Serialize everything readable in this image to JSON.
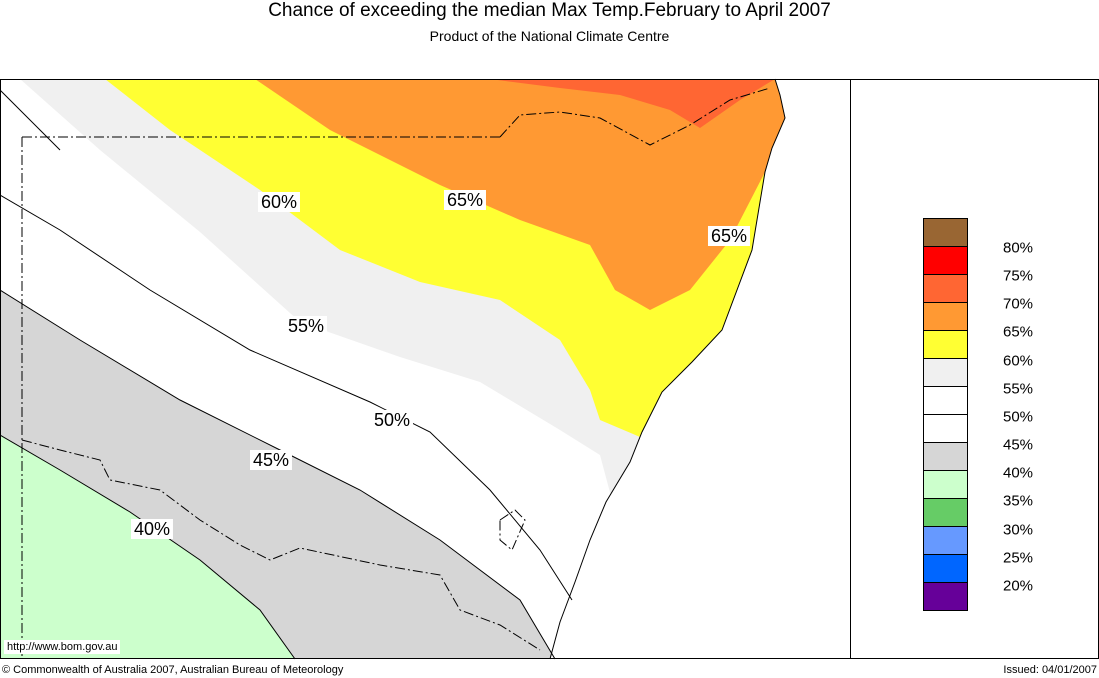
{
  "title": "Chance of exceeding the median Max Temp.February to April 2007",
  "subtitle": "Product of the National Climate Centre",
  "contour_labels": [
    "60%",
    "65%",
    "65%",
    "55%",
    "50%",
    "45%",
    "40%"
  ],
  "url": "http://www.bom.gov.au",
  "copyright": "© Commonwealth of Australia 2007, Australian Bureau of Meteorology",
  "issued": "Issued: 04/01/2007",
  "legend": {
    "colors": [
      "#996633",
      "#ff0000",
      "#ff6633",
      "#ff9933",
      "#ffff33",
      "#f0f0f0",
      "#ffffff",
      "#ffffff",
      "#d6d6d6",
      "#ccffcc",
      "#66cc66",
      "#6699ff",
      "#0066ff",
      "#660099"
    ],
    "labels": [
      "80%",
      "75%",
      "70%",
      "65%",
      "60%",
      "55%",
      "50%",
      "45%",
      "40%",
      "35%",
      "30%",
      "25%",
      "20%"
    ]
  }
}
